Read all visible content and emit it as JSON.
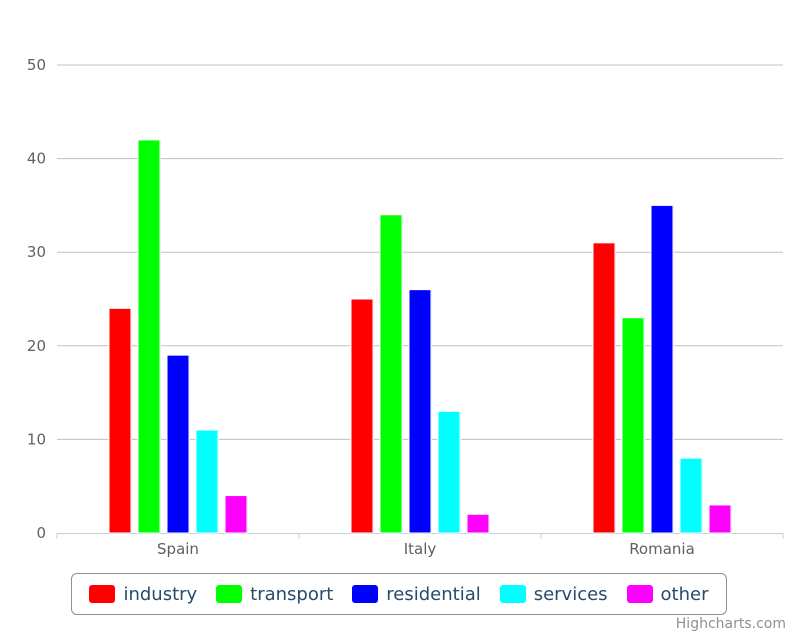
{
  "chart_data": {
    "type": "bar",
    "categories": [
      "Spain",
      "Italy",
      "Romania"
    ],
    "series": [
      {
        "name": "industry",
        "color": "#ff0000",
        "values": [
          24,
          25,
          31
        ]
      },
      {
        "name": "transport",
        "color": "#00ff00",
        "values": [
          42,
          34,
          23
        ]
      },
      {
        "name": "residential",
        "color": "#0000ff",
        "values": [
          19,
          26,
          35
        ]
      },
      {
        "name": "services",
        "color": "#00ffff",
        "values": [
          11,
          13,
          8
        ]
      },
      {
        "name": "other",
        "color": "#ff00ff",
        "values": [
          4,
          2,
          3
        ]
      }
    ],
    "title": "",
    "xlabel": "",
    "ylabel": "",
    "ylim": [
      0,
      50
    ],
    "yticks": [
      "0",
      "10",
      "20",
      "30",
      "40",
      "50"
    ],
    "grid": true,
    "legend_position": "bottom"
  },
  "credits": "Highcharts.com"
}
